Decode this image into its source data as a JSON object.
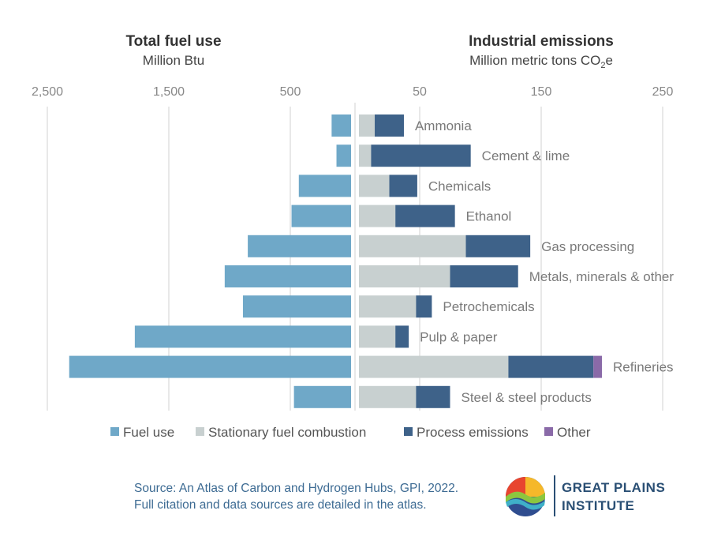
{
  "left_panel": {
    "title": "Total fuel use",
    "subtitle": "Million Btu"
  },
  "right_panel": {
    "title": "Industrial emissions",
    "subtitle": "Million metric tons CO2e"
  },
  "source": {
    "line1": "Source: An Atlas of Carbon and Hydrogen Hubs, GPI, 2022.",
    "line2": "Full citation and data sources are detailed in the atlas."
  },
  "logo": {
    "line1": "GREAT PLAINS",
    "line2": "INSTITUTE"
  },
  "colors": {
    "fuel_use": "#6fa8c8",
    "stationary": "#c8d0d0",
    "process": "#3e6289",
    "other": "#8a6aa8"
  },
  "chart_data": [
    {
      "type": "bar",
      "orientation": "horizontal",
      "title": "Total fuel use",
      "subtitle": "Million Btu",
      "xlim": [
        0,
        2500
      ],
      "x_reversed": true,
      "ticks": [
        {
          "value": 2500,
          "label": "2,500"
        },
        {
          "value": 1500,
          "label": "1,500"
        },
        {
          "value": 500,
          "label": "500"
        }
      ],
      "categories": [
        "Ammonia",
        "Cement & lime",
        "Chemicals",
        "Ethanol",
        "Gas processing",
        "Metals, minerals & other",
        "Petrochemicals",
        "Pulp & paper",
        "Refineries",
        "Steel & steel products"
      ],
      "series": [
        {
          "name": "Fuel use",
          "values": [
            160,
            120,
            430,
            490,
            850,
            1040,
            890,
            1780,
            2320,
            470
          ]
        }
      ]
    },
    {
      "type": "bar",
      "orientation": "horizontal",
      "stacked": true,
      "title": "Industrial emissions",
      "subtitle": "Million metric tons CO2e",
      "xlim": [
        0,
        250
      ],
      "ticks": [
        {
          "value": 50,
          "label": "50"
        },
        {
          "value": 150,
          "label": "150"
        },
        {
          "value": 250,
          "label": "250"
        }
      ],
      "categories": [
        "Ammonia",
        "Cement & lime",
        "Chemicals",
        "Ethanol",
        "Gas processing",
        "Metals, minerals & other",
        "Petrochemicals",
        "Pulp & paper",
        "Refineries",
        "Steel & steel products"
      ],
      "series": [
        {
          "name": "Stationary fuel combustion",
          "values": [
            13,
            10,
            25,
            30,
            88,
            75,
            47,
            30,
            123,
            47
          ]
        },
        {
          "name": "Process emissions",
          "values": [
            24,
            82,
            23,
            49,
            53,
            56,
            13,
            11,
            70,
            28
          ]
        },
        {
          "name": "Other",
          "values": [
            0,
            0,
            0,
            0,
            0,
            0,
            0,
            0,
            7,
            0
          ]
        }
      ]
    }
  ],
  "legend": [
    {
      "label": "Fuel use",
      "color": "#6fa8c8"
    },
    {
      "label": "Stationary fuel combustion",
      "color": "#c8d0d0"
    },
    {
      "label": "Process emissions",
      "color": "#3e6289"
    },
    {
      "label": "Other",
      "color": "#8a6aa8"
    }
  ]
}
